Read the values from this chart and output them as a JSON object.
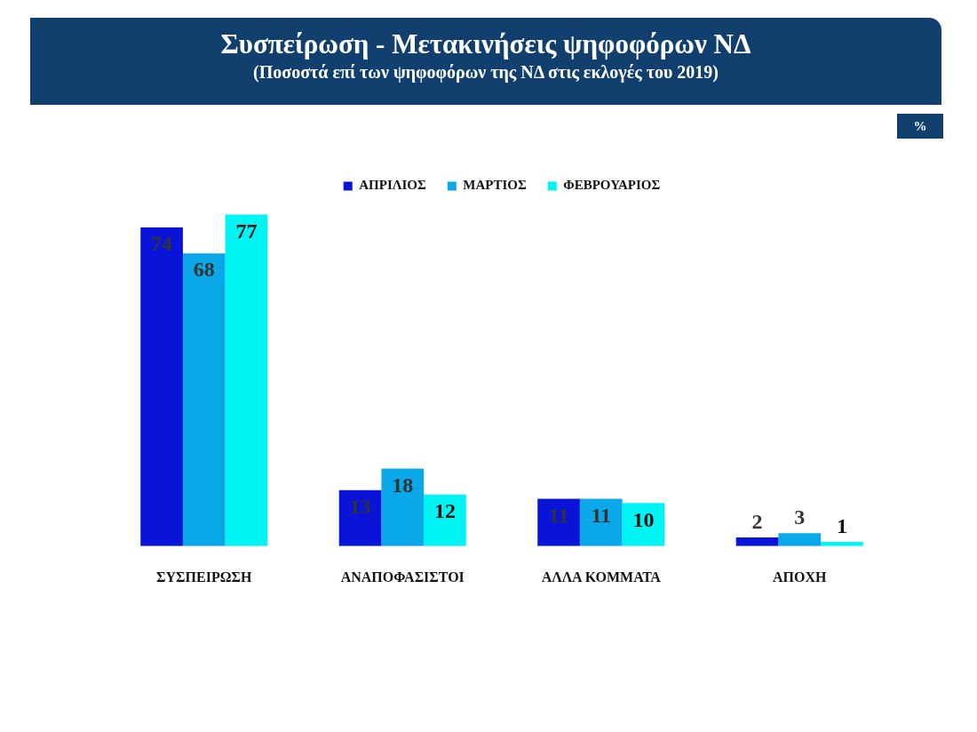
{
  "chart_data": {
    "type": "bar",
    "title": "Συσπείρωση - Μετακινήσεις ψηφοφόρων ΝΔ",
    "subtitle": "(Ποσοστά επί των ψηφοφόρων της ΝΔ στις εκλογές του 2019)",
    "annotations": [
      "%"
    ],
    "categories": [
      "ΣΥΣΠΕΙΡΩΣΗ",
      "ΑΝΑΠΟΦΑΣΙΣΤΟΙ",
      "ΑΛΛΑ ΚΟΜΜΑΤΑ",
      "ΑΠΟΧΗ"
    ],
    "series": [
      {
        "name": "ΑΠΡΙΛΙΟΣ",
        "color": "#0a14d8",
        "values": [
          74,
          13,
          11,
          2
        ]
      },
      {
        "name": "ΜΑΡΤΙΟΣ",
        "color": "#0aa8e8",
        "values": [
          68,
          18,
          11,
          3
        ]
      },
      {
        "name": "ΦΕΒΡΟΥΑΡΙΟΣ",
        "color": "#00f4f4",
        "values": [
          77,
          12,
          10,
          1
        ]
      }
    ],
    "data_labels": true,
    "legend": "top"
  }
}
